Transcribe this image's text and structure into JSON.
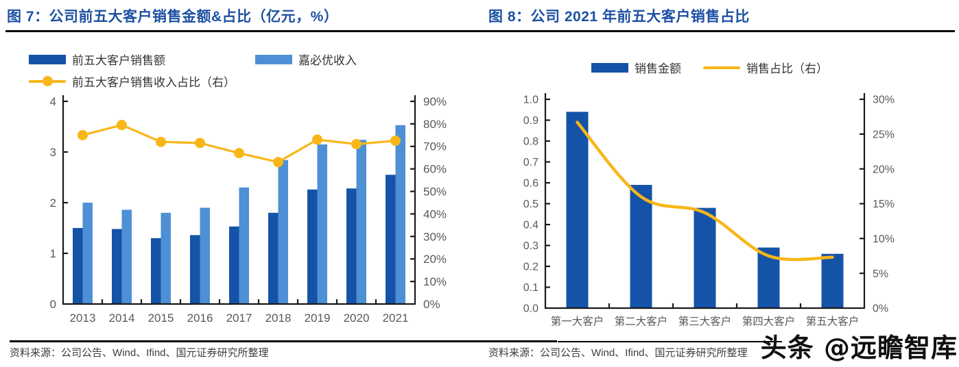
{
  "watermark": {
    "text": "头条 @远瞻智库"
  },
  "sources": {
    "left": "资料来源：公司公告、Wind、Ifind、国元证券研究所整理",
    "right": "资料来源：公司公告、Wind、Ifind、国元证券研究所整理"
  },
  "colors": {
    "title_blue": "#1D50A2",
    "bar_dark": "#1553A8",
    "bar_light": "#4E90D5",
    "line_yellow": "#F8B619",
    "axis_line": "#1A1A1A",
    "axis_text": "#595959",
    "source_text": "#3D3D3D",
    "watermark_text": "#101010"
  },
  "chart_data": [
    {
      "type": "bar+line",
      "title": "图 7：公司前五大客户销售金额&占比（亿元，%）",
      "categories": [
        "2013",
        "2014",
        "2015",
        "2016",
        "2017",
        "2018",
        "2019",
        "2020",
        "2021"
      ],
      "series": [
        {
          "name": "前五大客户销售额",
          "kind": "bar",
          "axis": "left",
          "color": "#1553A8",
          "values": [
            1.5,
            1.48,
            1.3,
            1.36,
            1.53,
            1.8,
            2.26,
            2.28,
            2.55
          ]
        },
        {
          "name": "嘉必优收入",
          "kind": "bar",
          "axis": "left",
          "color": "#4E90D5",
          "values": [
            2.0,
            1.86,
            1.8,
            1.9,
            2.3,
            2.84,
            3.15,
            3.24,
            3.53
          ]
        },
        {
          "name": "前五大客户销售收入占比（右）",
          "kind": "line",
          "axis": "right",
          "color": "#F8B619",
          "markers": true,
          "smooth": false,
          "values": [
            75,
            79.5,
            72,
            71.5,
            67,
            63,
            73,
            71,
            72.5
          ]
        }
      ],
      "left_axis": {
        "min": 0,
        "max": 4,
        "ticks": [
          "0",
          "1",
          "2",
          "3",
          "4"
        ]
      },
      "right_axis": {
        "min": 0,
        "max": 90,
        "ticks": [
          "0%",
          "10%",
          "20%",
          "30%",
          "40%",
          "50%",
          "60%",
          "70%",
          "80%",
          "90%"
        ]
      },
      "grid": false,
      "legend_position": "top-left"
    },
    {
      "type": "bar+line",
      "title": "图 8：公司 2021 年前五大客户销售占比",
      "categories": [
        "第一大客户",
        "第二大客户",
        "第三大客户",
        "第四大客户",
        "第五大客户"
      ],
      "series": [
        {
          "name": "销售金额",
          "kind": "bar",
          "axis": "left",
          "color": "#1553A8",
          "values": [
            0.94,
            0.59,
            0.48,
            0.29,
            0.26
          ]
        },
        {
          "name": "销售占比（右）",
          "kind": "line",
          "axis": "right",
          "color": "#F8B619",
          "markers": false,
          "smooth": true,
          "values": [
            26.7,
            16.0,
            13.7,
            7.5,
            7.3
          ]
        }
      ],
      "left_axis": {
        "min": 0,
        "max": 1,
        "ticks": [
          "0.0",
          "0.1",
          "0.2",
          "0.3",
          "0.4",
          "0.5",
          "0.6",
          "0.7",
          "0.8",
          "0.9",
          "1.0"
        ]
      },
      "right_axis": {
        "min": 0,
        "max": 30,
        "ticks": [
          "0%",
          "5%",
          "10%",
          "15%",
          "20%",
          "25%",
          "30%"
        ]
      },
      "grid": false,
      "legend_position": "top-center"
    }
  ]
}
